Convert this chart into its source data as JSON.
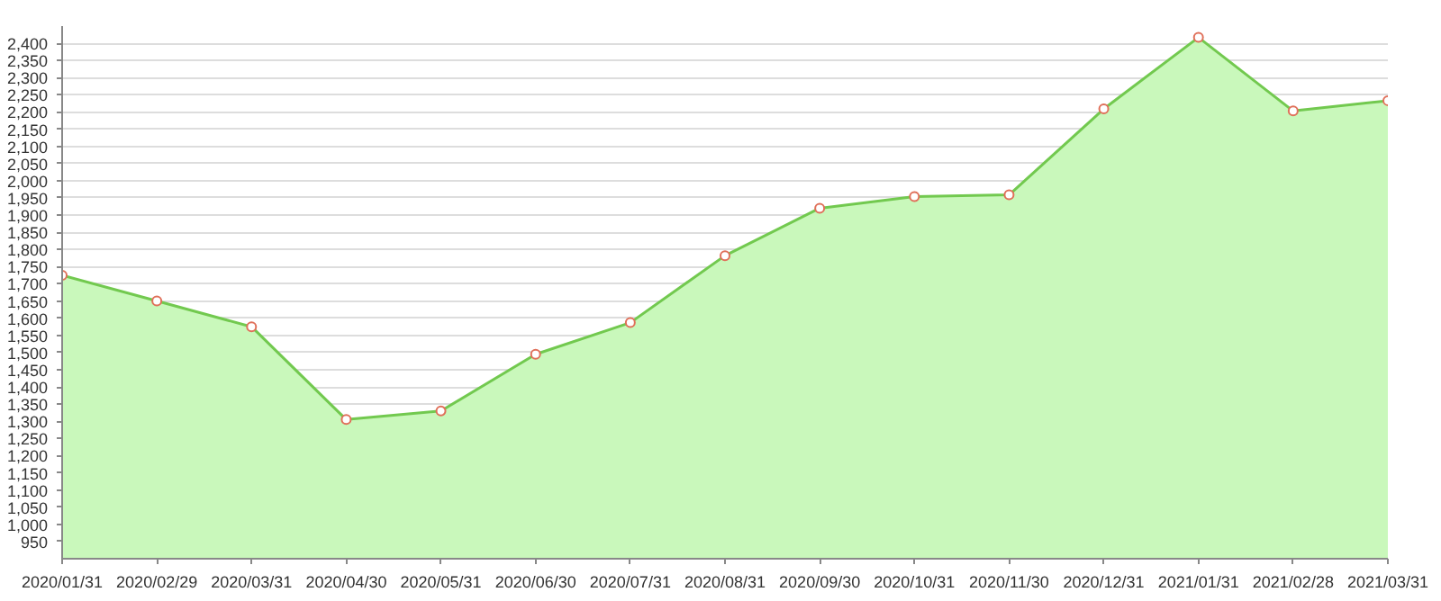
{
  "chart_data": {
    "type": "area",
    "categories": [
      "2020/01/31",
      "2020/02/29",
      "2020/03/31",
      "2020/04/30",
      "2020/05/31",
      "2020/06/30",
      "2020/07/31",
      "2020/08/31",
      "2020/09/30",
      "2020/10/31",
      "2020/11/30",
      "2020/12/31",
      "2021/01/31",
      "2021/02/28",
      "2021/03/31"
    ],
    "series": [
      {
        "color": "#72c94f",
        "values": [
          1725,
          1650,
          1575,
          1305,
          1330,
          1495,
          1587,
          1782,
          1920,
          1954,
          1959,
          2209,
          2417,
          2203,
          2233
        ]
      }
    ],
    "ylim": [
      900,
      2450
    ],
    "yticks": [
      {
        "value": 950,
        "label": "950"
      },
      {
        "value": 1000,
        "label": "1,000"
      },
      {
        "value": 1050,
        "label": "1,050"
      },
      {
        "value": 1100,
        "label": "1,100"
      },
      {
        "value": 1150,
        "label": "1,150"
      },
      {
        "value": 1200,
        "label": "1,200"
      },
      {
        "value": 1250,
        "label": "1,250"
      },
      {
        "value": 1300,
        "label": "1,300"
      },
      {
        "value": 1350,
        "label": "1,350"
      },
      {
        "value": 1400,
        "label": "1,400"
      },
      {
        "value": 1450,
        "label": "1,450"
      },
      {
        "value": 1500,
        "label": "1,500"
      },
      {
        "value": 1550,
        "label": "1,550"
      },
      {
        "value": 1600,
        "label": "1,600"
      },
      {
        "value": 1650,
        "label": "1,650"
      },
      {
        "value": 1700,
        "label": "1,700"
      },
      {
        "value": 1750,
        "label": "1,750"
      },
      {
        "value": 1800,
        "label": "1,800"
      },
      {
        "value": 1850,
        "label": "1,850"
      },
      {
        "value": 1900,
        "label": "1,900"
      },
      {
        "value": 1950,
        "label": "1,950"
      },
      {
        "value": 2000,
        "label": "2,000"
      },
      {
        "value": 2050,
        "label": "2,050"
      },
      {
        "value": 2100,
        "label": "2,100"
      },
      {
        "value": 2150,
        "label": "2,150"
      },
      {
        "value": 2200,
        "label": "2,200"
      },
      {
        "value": 2250,
        "label": "2,250"
      },
      {
        "value": 2300,
        "label": "2,300"
      },
      {
        "value": 2350,
        "label": "2,350"
      },
      {
        "value": 2400,
        "label": "2,400"
      }
    ],
    "grid": "y",
    "marker": "circle",
    "line_style": "solid"
  }
}
